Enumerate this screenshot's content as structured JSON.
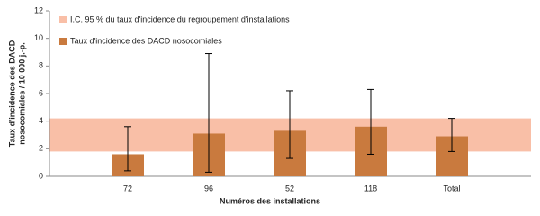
{
  "chart_data": {
    "type": "bar",
    "x_label": "Numéros des installations",
    "y_label": [
      "Taux d'incidence des DACD",
      "nosocomiales / 10 000 j.-p."
    ],
    "categories": [
      "72",
      "96",
      "52",
      "118",
      "Total"
    ],
    "series": [
      {
        "name": "Taux d'incidence des DACD nosocomiales",
        "color": "#c97a3e",
        "values": [
          1.6,
          3.1,
          3.3,
          3.6,
          2.9
        ],
        "ci_low": [
          0.4,
          0.3,
          1.3,
          1.6,
          1.8
        ],
        "ci_high": [
          3.6,
          8.9,
          6.2,
          6.3,
          4.2
        ]
      }
    ],
    "band": {
      "name": "I.C. 95 % du taux d'incidence du regroupement d'installations",
      "color": "#f9bfa7",
      "range": [
        1.8,
        4.2
      ]
    },
    "ylim": [
      0,
      12
    ],
    "yticks": [
      0,
      2,
      4,
      6,
      8,
      10,
      12
    ]
  }
}
